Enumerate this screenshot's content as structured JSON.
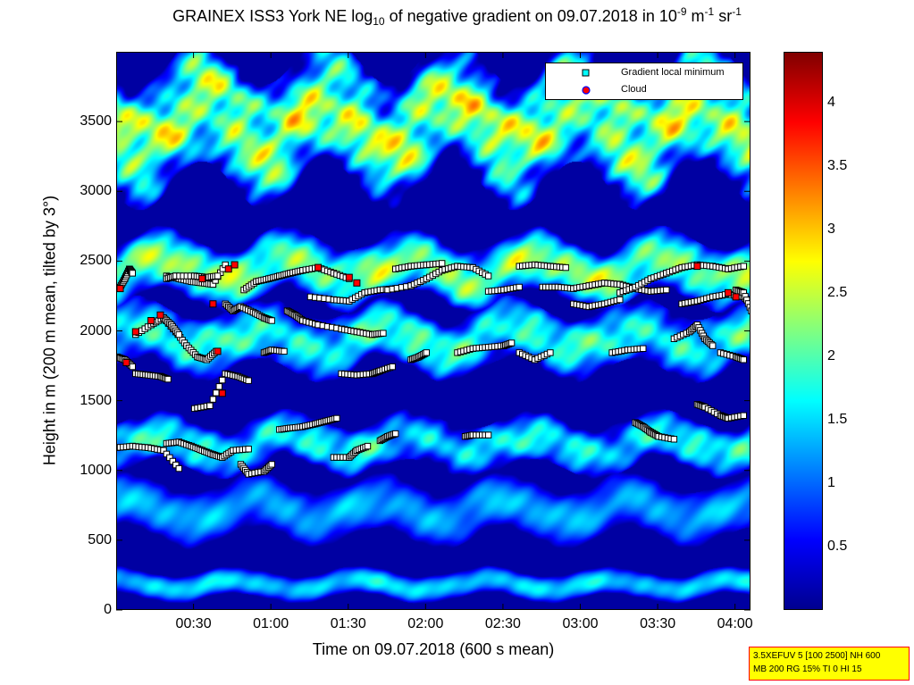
{
  "chart_data": {
    "type": "heatmap",
    "title": {
      "prefix": "GRAINEX ISS3 York NE log",
      "prefix_sub": "10",
      "middle": " of negative gradient on 09.07.2018 in 10",
      "exp1": "-9",
      "unit1": " m",
      "exp2": "-1",
      "unit2": " sr",
      "exp3": "-1"
    },
    "xlabel": "Time on 09.07.2018 (600 s mean)",
    "ylabel": "Height in m (200 m mean, tilted by 3°)",
    "x_range_hours": [
      0.0,
      4.1
    ],
    "y_range": [
      0,
      4000
    ],
    "x_ticks": [
      {
        "value": 0.5,
        "label": "00:30"
      },
      {
        "value": 1.0,
        "label": "01:00"
      },
      {
        "value": 1.5,
        "label": "01:30"
      },
      {
        "value": 2.0,
        "label": "02:00"
      },
      {
        "value": 2.5,
        "label": "02:30"
      },
      {
        "value": 3.0,
        "label": "03:00"
      },
      {
        "value": 3.5,
        "label": "03:30"
      },
      {
        "value": 4.0,
        "label": "04:00"
      }
    ],
    "y_ticks": [
      {
        "value": 0,
        "label": "0"
      },
      {
        "value": 500,
        "label": "500"
      },
      {
        "value": 1000,
        "label": "1000"
      },
      {
        "value": 1500,
        "label": "1500"
      },
      {
        "value": 2000,
        "label": "2000"
      },
      {
        "value": 2500,
        "label": "2500"
      },
      {
        "value": 3000,
        "label": "3000"
      },
      {
        "value": 3500,
        "label": "3500"
      }
    ],
    "colorbar": {
      "range": [
        0,
        4.4
      ],
      "colormap": "jet",
      "ticks": [
        {
          "value": 0.5,
          "label": "0.5"
        },
        {
          "value": 1.0,
          "label": "1"
        },
        {
          "value": 1.5,
          "label": "1.5"
        },
        {
          "value": 2.0,
          "label": "2"
        },
        {
          "value": 2.5,
          "label": "2.5"
        },
        {
          "value": 3.0,
          "label": "3"
        },
        {
          "value": 3.5,
          "label": "3.5"
        },
        {
          "value": 4.0,
          "label": "4"
        }
      ]
    },
    "layers": [
      {
        "description_level": 2.3,
        "height_band": [
          3000,
          4000
        ],
        "variability": "high"
      },
      {
        "description_level": 2.2,
        "height_band": [
          2200,
          2700
        ],
        "variability": "medium"
      },
      {
        "description_level": 1.8,
        "height_band": [
          1700,
          2200
        ],
        "variability": "medium"
      },
      {
        "description_level": 1.6,
        "height_band": [
          1000,
          1400
        ],
        "variability": "medium"
      },
      {
        "description_level": 1.3,
        "height_band": [
          500,
          950
        ],
        "variability": "low"
      },
      {
        "description_level": 1.5,
        "height_band": [
          80,
          300
        ],
        "variability": "low"
      }
    ],
    "series": [
      {
        "name": "Gradient local minimum",
        "marker": "square",
        "color": "#ffffff",
        "traces": [
          [
            [
              0.02,
              2320
            ],
            [
              0.05,
              2380
            ],
            [
              0.08,
              2450
            ],
            [
              0.1,
              2420
            ]
          ],
          [
            [
              0.0,
              1820
            ],
            [
              0.05,
              1800
            ],
            [
              0.1,
              1750
            ]
          ],
          [
            [
              0.12,
              1700
            ],
            [
              0.2,
              1690
            ],
            [
              0.28,
              1680
            ],
            [
              0.33,
              1660
            ]
          ],
          [
            [
              0.0,
              1170
            ],
            [
              0.1,
              1180
            ],
            [
              0.2,
              1170
            ],
            [
              0.3,
              1150
            ],
            [
              0.4,
              1020
            ]
          ],
          [
            [
              0.12,
              1980
            ],
            [
              0.22,
              2050
            ],
            [
              0.3,
              2100
            ],
            [
              0.38,
              2000
            ],
            [
              0.45,
              1900
            ],
            [
              0.52,
              1820
            ],
            [
              0.58,
              1800
            ],
            [
              0.64,
              1860
            ]
          ],
          [
            [
              0.3,
              2100
            ],
            [
              0.35,
              2050
            ],
            [
              0.4,
              1980
            ]
          ],
          [
            [
              0.32,
              2400
            ],
            [
              0.4,
              2380
            ],
            [
              0.48,
              2360
            ],
            [
              0.55,
              2350
            ],
            [
              0.62,
              2340
            ],
            [
              0.7,
              2480
            ]
          ],
          [
            [
              0.32,
              2380
            ],
            [
              0.38,
              2400
            ],
            [
              0.5,
              2400
            ],
            [
              0.58,
              2390
            ],
            [
              0.65,
              2400
            ]
          ],
          [
            [
              0.32,
              1200
            ],
            [
              0.4,
              1210
            ],
            [
              0.48,
              1180
            ],
            [
              0.55,
              1150
            ],
            [
              0.62,
              1120
            ],
            [
              0.68,
              1100
            ],
            [
              0.75,
              1150
            ],
            [
              0.85,
              1160
            ]
          ],
          [
            [
              0.5,
              1450
            ],
            [
              0.6,
              1470
            ],
            [
              0.7,
              1700
            ],
            [
              0.78,
              1680
            ],
            [
              0.85,
              1650
            ]
          ],
          [
            [
              0.7,
              2200
            ],
            [
              0.75,
              2150
            ],
            [
              0.8,
              2180
            ],
            [
              0.88,
              2140
            ],
            [
              0.95,
              2100
            ],
            [
              1.0,
              2080
            ]
          ],
          [
            [
              0.82,
              2300
            ],
            [
              0.9,
              2360
            ],
            [
              0.98,
              2380
            ],
            [
              1.05,
              2400
            ],
            [
              1.12,
              2420
            ],
            [
              1.2,
              2440
            ],
            [
              1.3,
              2460
            ],
            [
              1.4,
              2420
            ],
            [
              1.5,
              2380
            ]
          ],
          [
            [
              0.8,
              1050
            ],
            [
              0.85,
              980
            ],
            [
              0.95,
              1000
            ],
            [
              1.0,
              1050
            ]
          ],
          [
            [
              0.95,
              1850
            ],
            [
              1.0,
              1870
            ],
            [
              1.08,
              1860
            ]
          ],
          [
            [
              1.05,
              1300
            ],
            [
              1.12,
              1310
            ],
            [
              1.2,
              1320
            ],
            [
              1.28,
              1340
            ],
            [
              1.35,
              1360
            ],
            [
              1.42,
              1380
            ]
          ],
          [
            [
              1.1,
              2150
            ],
            [
              1.15,
              2120
            ],
            [
              1.2,
              2080
            ],
            [
              1.3,
              2050
            ],
            [
              1.45,
              2020
            ],
            [
              1.55,
              2000
            ],
            [
              1.65,
              1980
            ],
            [
              1.72,
              1990
            ]
          ],
          [
            [
              1.25,
              2250
            ],
            [
              1.4,
              2230
            ],
            [
              1.5,
              2220
            ],
            [
              1.6,
              2280
            ],
            [
              1.7,
              2300
            ],
            [
              1.8,
              2310
            ]
          ],
          [
            [
              1.4,
              1100
            ],
            [
              1.5,
              1100
            ],
            [
              1.55,
              1150
            ],
            [
              1.62,
              1180
            ]
          ],
          [
            [
              1.45,
              1700
            ],
            [
              1.55,
              1690
            ],
            [
              1.65,
              1700
            ],
            [
              1.7,
              1720
            ],
            [
              1.78,
              1750
            ]
          ],
          [
            [
              1.7,
              1220
            ],
            [
              1.75,
              1250
            ],
            [
              1.8,
              1270
            ]
          ],
          [
            [
              1.75,
              2300
            ],
            [
              1.9,
              2330
            ],
            [
              2.0,
              2380
            ],
            [
              2.1,
              2440
            ],
            [
              2.2,
              2470
            ],
            [
              2.3,
              2460
            ],
            [
              2.4,
              2400
            ]
          ],
          [
            [
              1.8,
              2450
            ],
            [
              1.9,
              2470
            ],
            [
              2.0,
              2480
            ],
            [
              2.1,
              2490
            ]
          ],
          [
            [
              1.9,
              1800
            ],
            [
              1.95,
              1820
            ],
            [
              2.0,
              1850
            ]
          ],
          [
            [
              2.2,
              1850
            ],
            [
              2.3,
              1880
            ],
            [
              2.4,
              1890
            ],
            [
              2.5,
              1900
            ],
            [
              2.55,
              1920
            ]
          ],
          [
            [
              2.25,
              1250
            ],
            [
              2.3,
              1260
            ],
            [
              2.4,
              1260
            ]
          ],
          [
            [
              2.4,
              2290
            ],
            [
              2.5,
              2300
            ],
            [
              2.6,
              2320
            ]
          ],
          [
            [
              2.6,
              2470
            ],
            [
              2.7,
              2480
            ],
            [
              2.8,
              2470
            ],
            [
              2.9,
              2460
            ]
          ],
          [
            [
              2.6,
              1850
            ],
            [
              2.7,
              1800
            ],
            [
              2.8,
              1850
            ]
          ],
          [
            [
              2.75,
              2320
            ],
            [
              2.85,
              2320
            ],
            [
              2.95,
              2310
            ],
            [
              3.05,
              2330
            ],
            [
              3.15,
              2350
            ],
            [
              3.25,
              2340
            ],
            [
              3.35,
              2310
            ],
            [
              3.45,
              2290
            ],
            [
              3.55,
              2300
            ]
          ],
          [
            [
              2.95,
              2200
            ],
            [
              3.05,
              2180
            ],
            [
              3.15,
              2200
            ],
            [
              3.25,
              2230
            ]
          ],
          [
            [
              3.2,
              1850
            ],
            [
              3.3,
              1870
            ],
            [
              3.4,
              1880
            ]
          ],
          [
            [
              3.25,
              2280
            ],
            [
              3.35,
              2320
            ],
            [
              3.45,
              2380
            ],
            [
              3.55,
              2420
            ],
            [
              3.65,
              2460
            ],
            [
              3.75,
              2480
            ],
            [
              3.85,
              2470
            ],
            [
              3.95,
              2450
            ],
            [
              4.05,
              2470
            ]
          ],
          [
            [
              3.35,
              1350
            ],
            [
              3.4,
              1320
            ],
            [
              3.45,
              1280
            ],
            [
              3.5,
              1250
            ]
          ],
          [
            [
              3.5,
              1250
            ],
            [
              3.6,
              1230
            ]
          ],
          [
            [
              3.6,
              1950
            ],
            [
              3.7,
              2000
            ],
            [
              3.75,
              2050
            ],
            [
              3.8,
              1950
            ],
            [
              3.85,
              1900
            ]
          ],
          [
            [
              3.65,
              2200
            ],
            [
              3.75,
              2220
            ],
            [
              3.85,
              2250
            ],
            [
              3.95,
              2270
            ],
            [
              4.05,
              2250
            ],
            [
              4.1,
              2200
            ]
          ],
          [
            [
              3.75,
              1480
            ],
            [
              3.8,
              1460
            ],
            [
              3.9,
              1400
            ],
            [
              3.95,
              1380
            ],
            [
              4.05,
              1400
            ]
          ],
          [
            [
              3.9,
              1850
            ],
            [
              4.0,
              1820
            ],
            [
              4.05,
              1800
            ]
          ],
          [
            [
              4.0,
              2300
            ],
            [
              4.05,
              2280
            ],
            [
              4.1,
              2150
            ]
          ]
        ]
      },
      {
        "name": "Cloud",
        "marker": "square",
        "color": "#ff0000",
        "points": [
          [
            0.02,
            2310
          ],
          [
            0.06,
            1780
          ],
          [
            0.12,
            2000
          ],
          [
            0.22,
            2080
          ],
          [
            0.28,
            2120
          ],
          [
            0.55,
            2380
          ],
          [
            0.62,
            2200
          ],
          [
            0.65,
            1860
          ],
          [
            0.68,
            1560
          ],
          [
            0.72,
            2450
          ],
          [
            0.76,
            2480
          ],
          [
            1.3,
            2460
          ],
          [
            1.5,
            2390
          ],
          [
            1.55,
            2350
          ],
          [
            3.75,
            2470
          ],
          [
            3.95,
            2280
          ],
          [
            4.0,
            2250
          ]
        ]
      }
    ],
    "legend": {
      "placement": "top-right"
    }
  },
  "stamp": {
    "line1": "3.5XEFUV 5 [100 2500] NH 600",
    "line2": "MB 200 RG 15% TI 0 HI 15"
  }
}
